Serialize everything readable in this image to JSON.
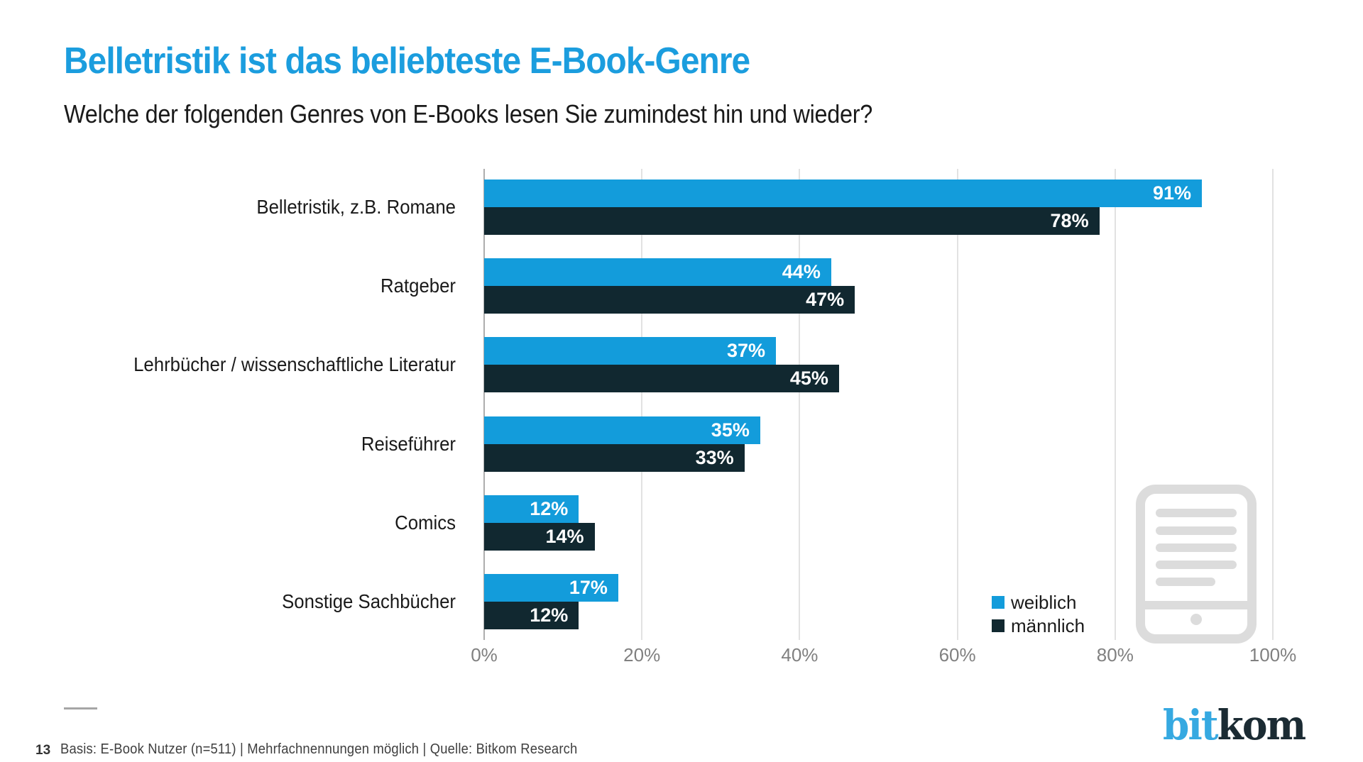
{
  "slide": {
    "title": "Belletristik ist das beliebteste E-Book-Genre",
    "subtitle": "Welche der folgenden Genres von E-Books lesen Sie zumindest hin und wieder?",
    "page_number": "13",
    "footnote": "Basis: E-Book Nutzer (n=511) | Mehrfachnennungen möglich | Quelle: Bitkom Research",
    "logo": {
      "bit": "bit",
      "kom": "kom"
    }
  },
  "colors": {
    "title_blue": "#1B9DDE",
    "series_weiblich": "#139CDB",
    "series_maennlich": "#112830",
    "value_label": "#FFFFFF",
    "gridline": "#E2E2E2",
    "axis_line": "#ADADAD",
    "tick_label": "#808080",
    "watermark_gray": "#DCDCDC",
    "logo_blue": "#36A9E1",
    "logo_dark": "#1B2B33"
  },
  "chart_data": {
    "type": "bar",
    "orientation": "horizontal",
    "title": "Belletristik ist das beliebteste E-Book-Genre",
    "categories": [
      "Belletristik, z.B. Romane",
      "Ratgeber",
      "Lehrbücher / wissenschaftliche Literatur",
      "Reiseführer",
      "Comics",
      "Sonstige Sachbücher"
    ],
    "series": [
      {
        "name": "weiblich",
        "color": "#139CDB",
        "values": [
          91,
          44,
          37,
          35,
          12,
          17
        ]
      },
      {
        "name": "männlich",
        "color": "#112830",
        "values": [
          78,
          47,
          45,
          33,
          14,
          12
        ]
      }
    ],
    "value_suffix": "%",
    "x_ticks": [
      "0%",
      "20%",
      "40%",
      "60%",
      "80%",
      "100%"
    ],
    "xlim": [
      0,
      100
    ],
    "grid": true,
    "legend_position": "bottom-right"
  }
}
